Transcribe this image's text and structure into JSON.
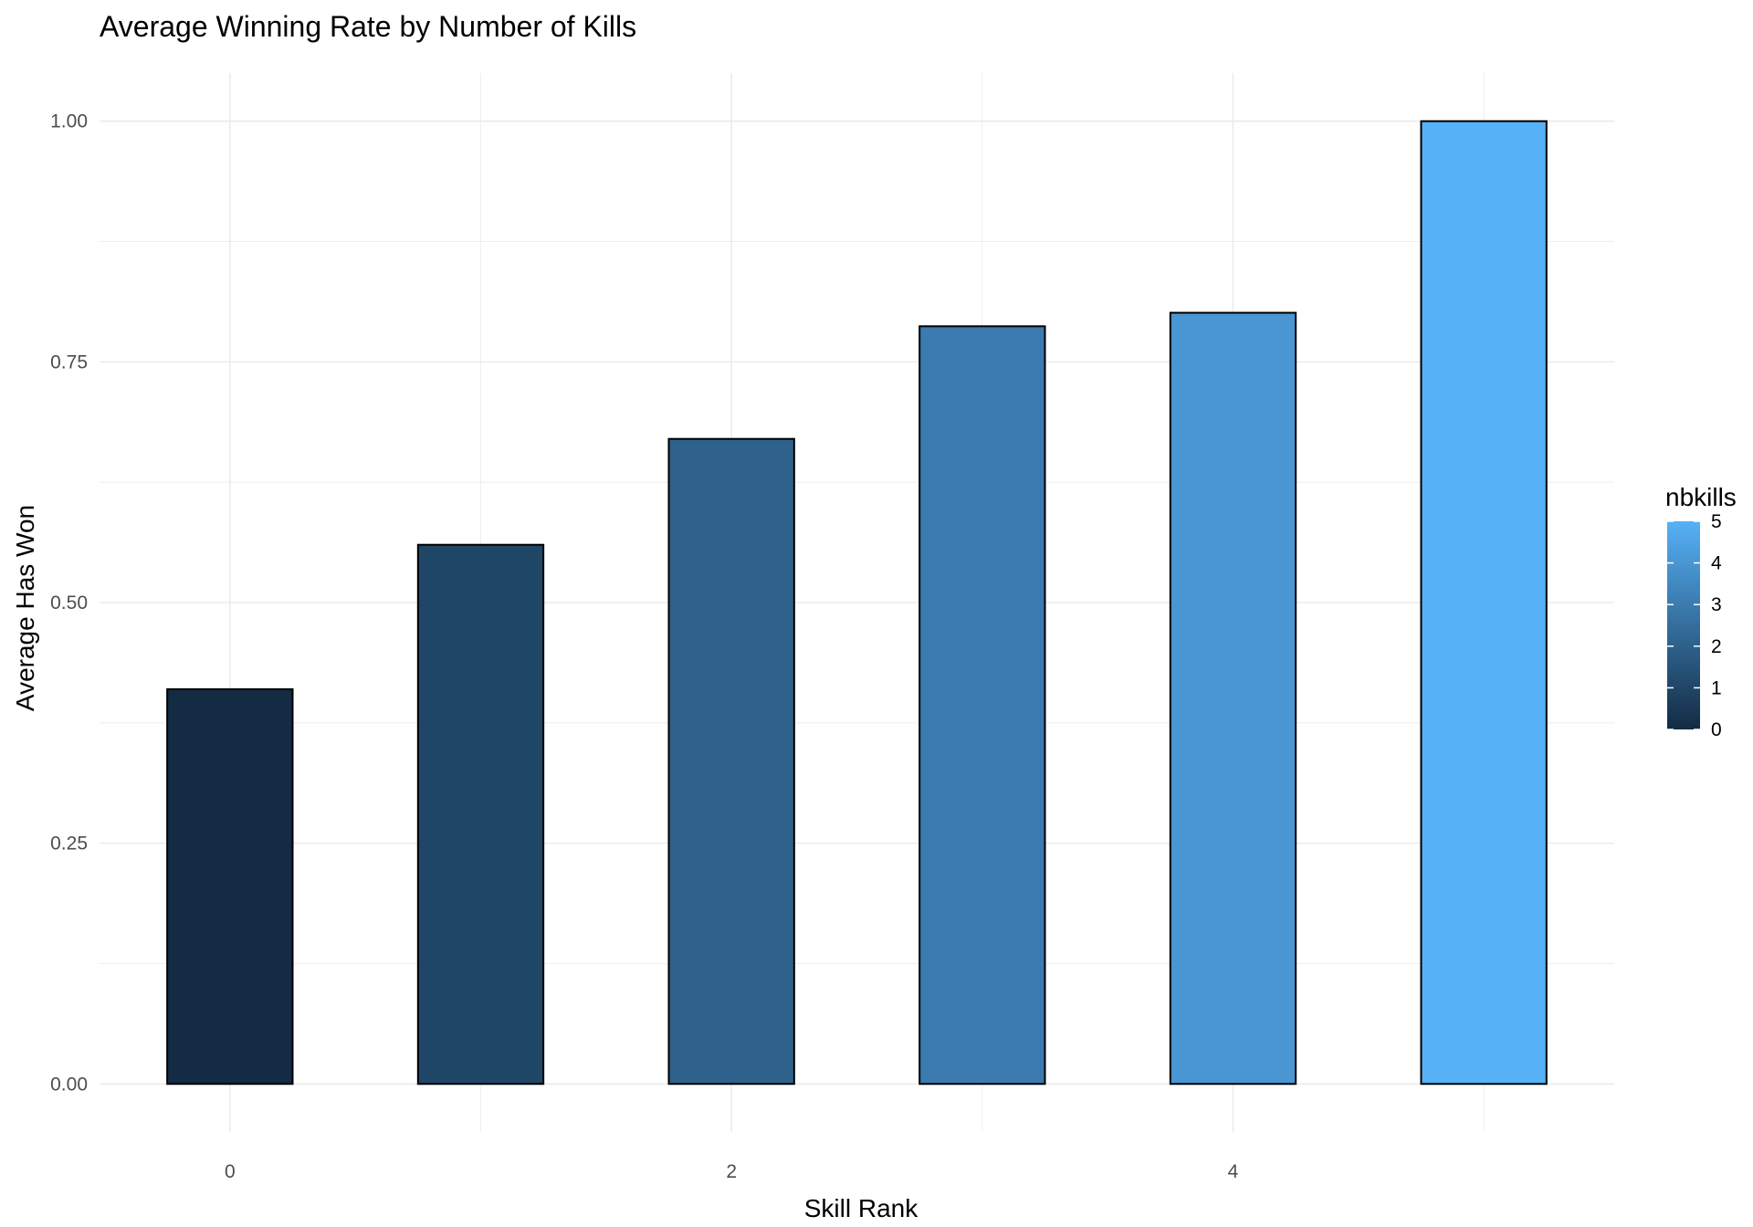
{
  "chart_data": {
    "type": "bar",
    "title": "Average Winning Rate by Number of Kills",
    "xlabel": "Skill Rank",
    "ylabel": "Average Has Won",
    "x": [
      0,
      1,
      2,
      3,
      4,
      5
    ],
    "values": [
      0.41,
      0.56,
      0.67,
      0.787,
      0.801,
      1.0
    ],
    "xlim": [
      -0.52,
      5.52
    ],
    "ylim": [
      -0.05,
      1.05
    ],
    "x_ticks": [
      0,
      2,
      4
    ],
    "x_tick_labels": [
      "0",
      "2",
      "4"
    ],
    "y_ticks": [
      0,
      0.25,
      0.5,
      0.75,
      1.0
    ],
    "y_tick_labels": [
      "0.00",
      "0.25",
      "0.50",
      "0.75",
      "1.00"
    ],
    "bar_width": 0.5,
    "grid": true,
    "bar_outline_color": "#000000",
    "fill_scale": {
      "variable": "nbkills",
      "low_color": "#132B43",
      "high_color": "#56B1F7",
      "range": [
        0,
        5
      ]
    },
    "legend": {
      "title": "nbkills",
      "placement": "right",
      "ticks": [
        0,
        1,
        2,
        3,
        4,
        5
      ],
      "tick_labels": [
        "0",
        "1",
        "2",
        "3",
        "4",
        "5"
      ]
    }
  }
}
